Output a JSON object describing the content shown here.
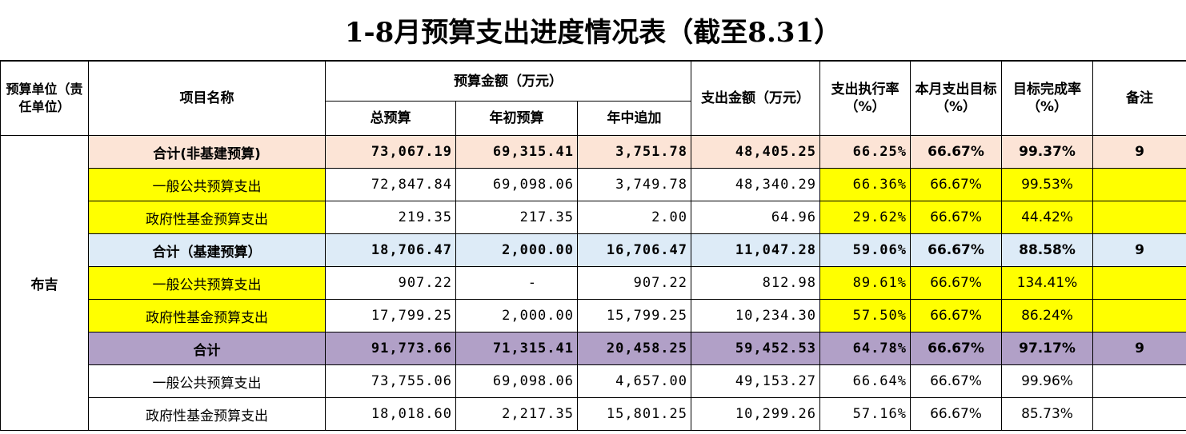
{
  "title": "1-8月预算支出进度情况表（截至8.31）",
  "headers": {
    "unit": "预算单位（责任单位）",
    "project": "项目名称",
    "budget_group": "预算金额（万元）",
    "total_budget": "总预算",
    "initial_budget": "年初预算",
    "mid_year_add": "年中追加",
    "expenditure": "支出金额（万元）",
    "exec_rate": "支出执行率（%）",
    "month_target": "本月支出目标（%）",
    "completion_rate": "目标完成率（%）",
    "note": "备注"
  },
  "unit_name": "布吉",
  "rows": [
    {
      "name": "合计(非基建预算)",
      "total": "73,067.19",
      "initial": "69,315.41",
      "added": "3,751.78",
      "spent": "48,405.25",
      "exec": "66.25%",
      "target": "66.67%",
      "completion": "99.37%",
      "note": "9"
    },
    {
      "name": "一般公共预算支出",
      "total": "72,847.84",
      "initial": "69,098.06",
      "added": "3,749.78",
      "spent": "48,340.29",
      "exec": "66.36%",
      "target": "66.67%",
      "completion": "99.53%",
      "note": ""
    },
    {
      "name": "政府性基金预算支出",
      "total": "219.35",
      "initial": "217.35",
      "added": "2.00",
      "spent": "64.96",
      "exec": "29.62%",
      "target": "66.67%",
      "completion": "44.42%",
      "note": ""
    },
    {
      "name": "合计（基建预算）",
      "total": "18,706.47",
      "initial": "2,000.00",
      "added": "16,706.47",
      "spent": "11,047.28",
      "exec": "59.06%",
      "target": "66.67%",
      "completion": "88.58%",
      "note": "9"
    },
    {
      "name": "一般公共预算支出",
      "total": "907.22",
      "initial": "-",
      "added": "907.22",
      "spent": "812.98",
      "exec": "89.61%",
      "target": "66.67%",
      "completion": "134.41%",
      "note": ""
    },
    {
      "name": "政府性基金预算支出",
      "total": "17,799.25",
      "initial": "2,000.00",
      "added": "15,799.25",
      "spent": "10,234.30",
      "exec": "57.50%",
      "target": "66.67%",
      "completion": "86.24%",
      "note": ""
    },
    {
      "name": "合计",
      "total": "91,773.66",
      "initial": "71,315.41",
      "added": "20,458.25",
      "spent": "59,452.53",
      "exec": "64.78%",
      "target": "66.67%",
      "completion": "97.17%",
      "note": "9"
    },
    {
      "name": "一般公共预算支出",
      "total": "73,755.06",
      "initial": "69,098.06",
      "added": "4,657.00",
      "spent": "49,153.27",
      "exec": "66.64%",
      "target": "66.67%",
      "completion": "99.96%",
      "note": ""
    },
    {
      "name": "政府性基金预算支出",
      "total": "18,018.60",
      "initial": "2,217.35",
      "added": "15,801.25",
      "spent": "10,299.26",
      "exec": "57.16%",
      "target": "66.67%",
      "completion": "85.73%",
      "note": ""
    }
  ],
  "colors": {
    "peach": "#fce4d6",
    "light_blue": "#ddebf7",
    "purple": "#b1a0c7",
    "yellow": "#ffff00"
  }
}
